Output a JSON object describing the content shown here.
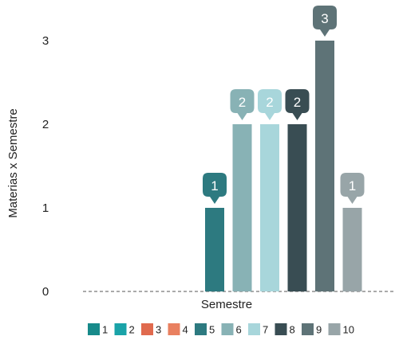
{
  "chart_data": {
    "type": "bar",
    "ylabel": "Materias x Semestre",
    "xlabel": "Semestre",
    "ylim": [
      0,
      3
    ],
    "yticks": [
      "0",
      "1",
      "2",
      "3"
    ],
    "grid": false,
    "legend_position": "bottom",
    "categories": [
      "1",
      "2",
      "3",
      "4",
      "5",
      "6",
      "7",
      "8",
      "9",
      "10"
    ],
    "values": [
      0,
      0,
      0,
      0,
      1,
      2,
      2,
      2,
      3,
      1
    ],
    "value_labels": [
      "",
      "",
      "",
      "",
      "1",
      "2",
      "2",
      "2",
      "3",
      "1"
    ],
    "colors": [
      "#178a8a",
      "#1aa3a8",
      "#e06a4e",
      "#e98060",
      "#2d7a80",
      "#88b2b5",
      "#a8d6db",
      "#394d53",
      "#5e7377",
      "#98a5a8"
    ]
  }
}
